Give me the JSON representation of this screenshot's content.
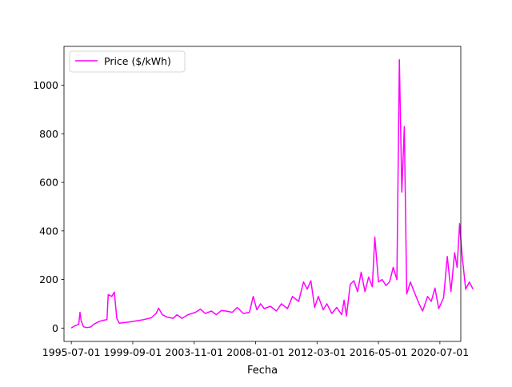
{
  "chart_data": {
    "type": "line",
    "xlabel": "Fecha",
    "ylabel": "",
    "x_ticks": [
      "1995-07-01",
      "1999-09-01",
      "2003-11-01",
      "2008-01-01",
      "2012-03-01",
      "2016-05-01",
      "2020-07-01"
    ],
    "y_ticks": [
      0,
      200,
      400,
      600,
      800,
      1000
    ],
    "xlim": [
      "1995-01-01",
      "2021-12-01"
    ],
    "ylim": [
      -55,
      1160
    ],
    "legend_position": "upper-left",
    "series": [
      {
        "name": "Price ($/kWh)",
        "color": "#ff00ff",
        "points": [
          [
            "1995-07-01",
            0
          ],
          [
            "1995-10-01",
            10
          ],
          [
            "1996-01-01",
            15
          ],
          [
            "1996-02-01",
            65
          ],
          [
            "1996-03-01",
            30
          ],
          [
            "1996-05-01",
            5
          ],
          [
            "1996-08-01",
            2
          ],
          [
            "1996-11-01",
            5
          ],
          [
            "1997-01-01",
            15
          ],
          [
            "1997-03-01",
            20
          ],
          [
            "1997-06-01",
            28
          ],
          [
            "1997-09-01",
            32
          ],
          [
            "1997-12-01",
            35
          ],
          [
            "1998-01-01",
            138
          ],
          [
            "1998-04-01",
            130
          ],
          [
            "1998-06-01",
            148
          ],
          [
            "1998-08-01",
            40
          ],
          [
            "1998-10-01",
            20
          ],
          [
            "1999-01-01",
            22
          ],
          [
            "1999-06-01",
            25
          ],
          [
            "1999-12-01",
            30
          ],
          [
            "2000-06-01",
            35
          ],
          [
            "2000-12-01",
            42
          ],
          [
            "2001-04-01",
            60
          ],
          [
            "2001-06-01",
            82
          ],
          [
            "2001-09-01",
            55
          ],
          [
            "2002-01-01",
            45
          ],
          [
            "2002-06-01",
            40
          ],
          [
            "2002-09-01",
            55
          ],
          [
            "2003-01-01",
            40
          ],
          [
            "2003-06-01",
            55
          ],
          [
            "2003-12-01",
            65
          ],
          [
            "2004-04-01",
            78
          ],
          [
            "2004-08-01",
            60
          ],
          [
            "2005-01-01",
            70
          ],
          [
            "2005-05-01",
            55
          ],
          [
            "2005-09-01",
            72
          ],
          [
            "2006-01-01",
            70
          ],
          [
            "2006-06-01",
            65
          ],
          [
            "2006-10-01",
            85
          ],
          [
            "2007-03-01",
            60
          ],
          [
            "2007-08-01",
            65
          ],
          [
            "2007-11-01",
            130
          ],
          [
            "2008-02-01",
            75
          ],
          [
            "2008-05-01",
            100
          ],
          [
            "2008-08-01",
            80
          ],
          [
            "2009-01-01",
            90
          ],
          [
            "2009-06-01",
            70
          ],
          [
            "2009-10-01",
            100
          ],
          [
            "2010-03-01",
            80
          ],
          [
            "2010-07-01",
            130
          ],
          [
            "2010-12-01",
            110
          ],
          [
            "2011-04-01",
            190
          ],
          [
            "2011-07-01",
            160
          ],
          [
            "2011-10-01",
            195
          ],
          [
            "2012-01-01",
            85
          ],
          [
            "2012-04-01",
            130
          ],
          [
            "2012-08-01",
            75
          ],
          [
            "2012-11-01",
            100
          ],
          [
            "2013-03-01",
            60
          ],
          [
            "2013-07-01",
            85
          ],
          [
            "2013-11-01",
            55
          ],
          [
            "2014-01-01",
            115
          ],
          [
            "2014-03-01",
            50
          ],
          [
            "2014-06-01",
            180
          ],
          [
            "2014-09-01",
            195
          ],
          [
            "2014-12-01",
            150
          ],
          [
            "2015-03-01",
            230
          ],
          [
            "2015-06-01",
            150
          ],
          [
            "2015-09-01",
            210
          ],
          [
            "2015-12-01",
            170
          ],
          [
            "2016-02-01",
            375
          ],
          [
            "2016-05-01",
            190
          ],
          [
            "2016-08-01",
            200
          ],
          [
            "2016-11-01",
            175
          ],
          [
            "2017-02-01",
            190
          ],
          [
            "2017-05-01",
            250
          ],
          [
            "2017-08-01",
            200
          ],
          [
            "2017-10-01",
            1105
          ],
          [
            "2017-12-01",
            560
          ],
          [
            "2018-02-01",
            830
          ],
          [
            "2018-04-01",
            140
          ],
          [
            "2018-07-01",
            190
          ],
          [
            "2018-10-01",
            150
          ],
          [
            "2019-02-01",
            100
          ],
          [
            "2019-05-01",
            70
          ],
          [
            "2019-09-01",
            130
          ],
          [
            "2019-12-01",
            110
          ],
          [
            "2020-03-01",
            165
          ],
          [
            "2020-06-01",
            80
          ],
          [
            "2020-10-01",
            125
          ],
          [
            "2021-01-01",
            295
          ],
          [
            "2021-04-01",
            150
          ],
          [
            "2021-07-01",
            310
          ],
          [
            "2021-09-01",
            250
          ],
          [
            "2021-11-01",
            430
          ],
          [
            "2022-01-01",
            300
          ],
          [
            "2022-04-01",
            160
          ],
          [
            "2022-07-01",
            190
          ],
          [
            "2022-10-01",
            160
          ]
        ]
      }
    ]
  }
}
